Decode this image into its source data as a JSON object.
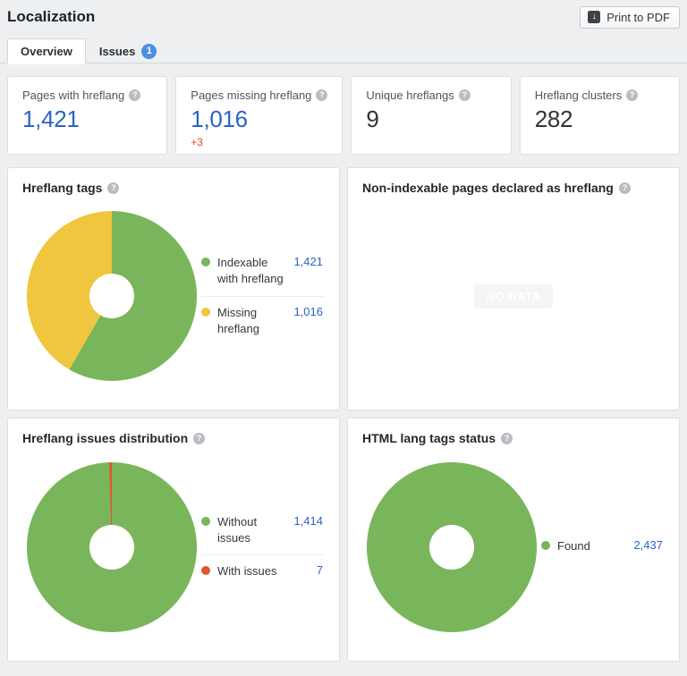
{
  "header": {
    "title": "Localization",
    "print_label": "Print to PDF",
    "print_icon": "download-arrow"
  },
  "tabs": [
    {
      "label": "Overview",
      "active": true
    },
    {
      "label": "Issues",
      "active": false,
      "badge": "1"
    }
  ],
  "help_icon_glyph": "?",
  "stats": [
    {
      "label": "Pages with hreflang",
      "value": "1,421"
    },
    {
      "label": "Pages missing hreflang",
      "value": "1,016",
      "delta": "+3"
    },
    {
      "label": "Unique hreflangs",
      "value": "9"
    },
    {
      "label": "Hreflang clusters",
      "value": "282"
    }
  ],
  "panels": [
    {
      "title": "Hreflang tags",
      "legend": [
        {
          "label": "Indexable with hreflang",
          "value": "1,421",
          "color": "green"
        },
        {
          "label": "Missing hreflang",
          "value": "1,016",
          "color": "yellow"
        }
      ]
    },
    {
      "title": "Non-indexable pages declared as hreflang",
      "no_data": "NO DATA"
    },
    {
      "title": "Hreflang issues distribution",
      "legend": [
        {
          "label": "Without issues",
          "value": "1,414",
          "color": "green"
        },
        {
          "label": "With issues",
          "value": "7",
          "color": "red"
        }
      ]
    },
    {
      "title": "HTML lang tags status",
      "legend": [
        {
          "label": "Found",
          "value": "2,437",
          "color": "green"
        }
      ]
    }
  ],
  "chart_data": [
    {
      "type": "pie",
      "subtype": "donut",
      "title": "Hreflang tags",
      "segments": [
        {
          "label": "Indexable with hreflang",
          "value": 1421,
          "color": "#79b55b"
        },
        {
          "label": "Missing hreflang",
          "value": 1016,
          "color": "#f0c63f"
        }
      ],
      "total": 2437,
      "start_angle_deg": 0,
      "legend_position": "right"
    },
    {
      "type": "pie",
      "subtype": "donut",
      "title": "Hreflang issues distribution",
      "segments": [
        {
          "label": "Without issues",
          "value": 1414,
          "color": "#79b55b"
        },
        {
          "label": "With issues",
          "value": 7,
          "color": "#e1572f"
        }
      ],
      "total": 1421,
      "start_angle_deg": 0,
      "legend_position": "right"
    },
    {
      "type": "pie",
      "subtype": "donut",
      "title": "HTML lang tags status",
      "segments": [
        {
          "label": "Found",
          "value": 2437,
          "color": "#79b55b"
        }
      ],
      "total": 2437,
      "start_angle_deg": 0,
      "legend_position": "right"
    }
  ],
  "colors": {
    "page_background": "#edeff1",
    "panel_background": "#ffffff",
    "panel_border": "#dcdfe3",
    "link_blue": "#2b64c5",
    "delta_red": "#e0452c",
    "badge_blue": "#4a90e2",
    "chart_green": "#79b55b",
    "chart_yellow": "#f0c63f",
    "chart_red": "#e1572f",
    "help_icon_gray": "#b9bdc3"
  }
}
